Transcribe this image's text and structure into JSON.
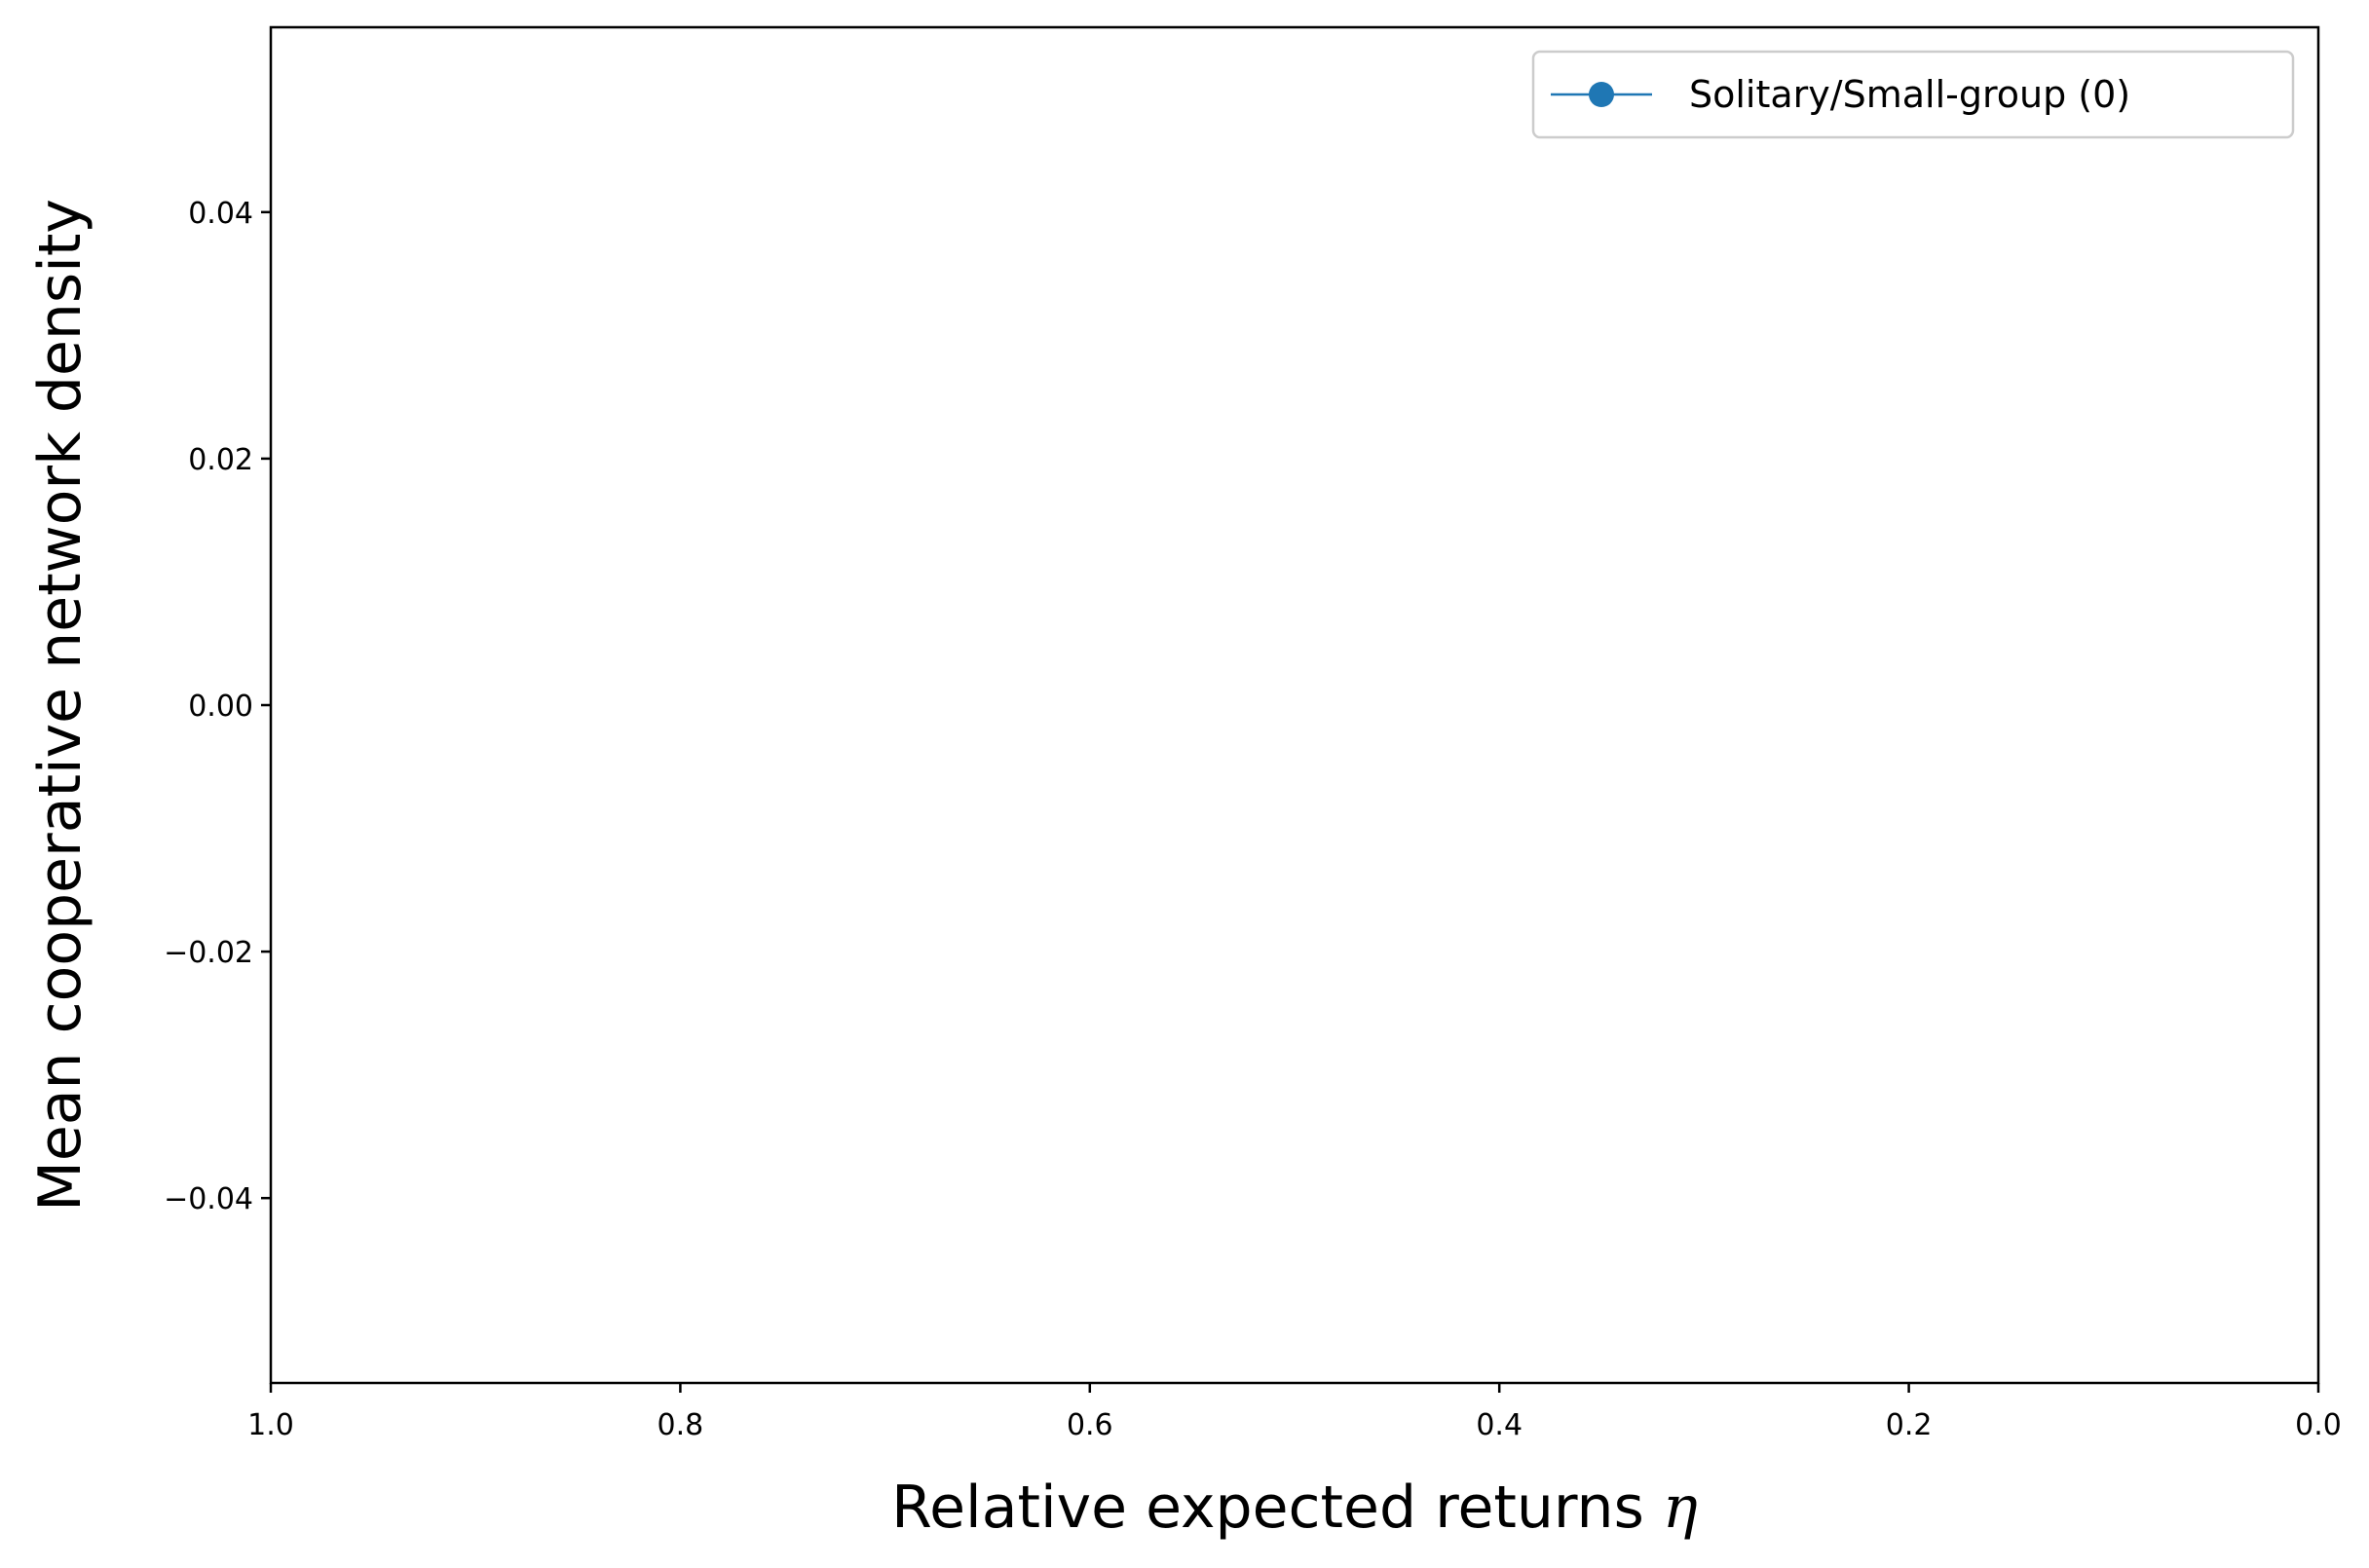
{
  "chart_data": {
    "type": "line",
    "title": "",
    "xlabel": "Relative expected returns",
    "xlabel_symbol": "η",
    "ylabel": "Mean cooperative network density",
    "xlim": [
      1.0,
      0.0
    ],
    "ylim": [
      -0.055,
      0.055
    ],
    "x_ticks": [
      1.0,
      0.8,
      0.6,
      0.4,
      0.2,
      0.0
    ],
    "x_tick_labels": [
      "1.0",
      "0.8",
      "0.6",
      "0.4",
      "0.2",
      "0.0"
    ],
    "y_ticks": [
      0.04,
      0.02,
      0.0,
      -0.02,
      -0.04
    ],
    "y_tick_labels": [
      "0.04",
      "0.02",
      "0.00",
      "−0.02",
      "−0.04"
    ],
    "grid": false,
    "legend_position": "top-right",
    "series": [
      {
        "name": "Solitary/Small-group (0)",
        "color": "#1f77b4",
        "marker": "circle",
        "x": [],
        "y": []
      }
    ]
  }
}
